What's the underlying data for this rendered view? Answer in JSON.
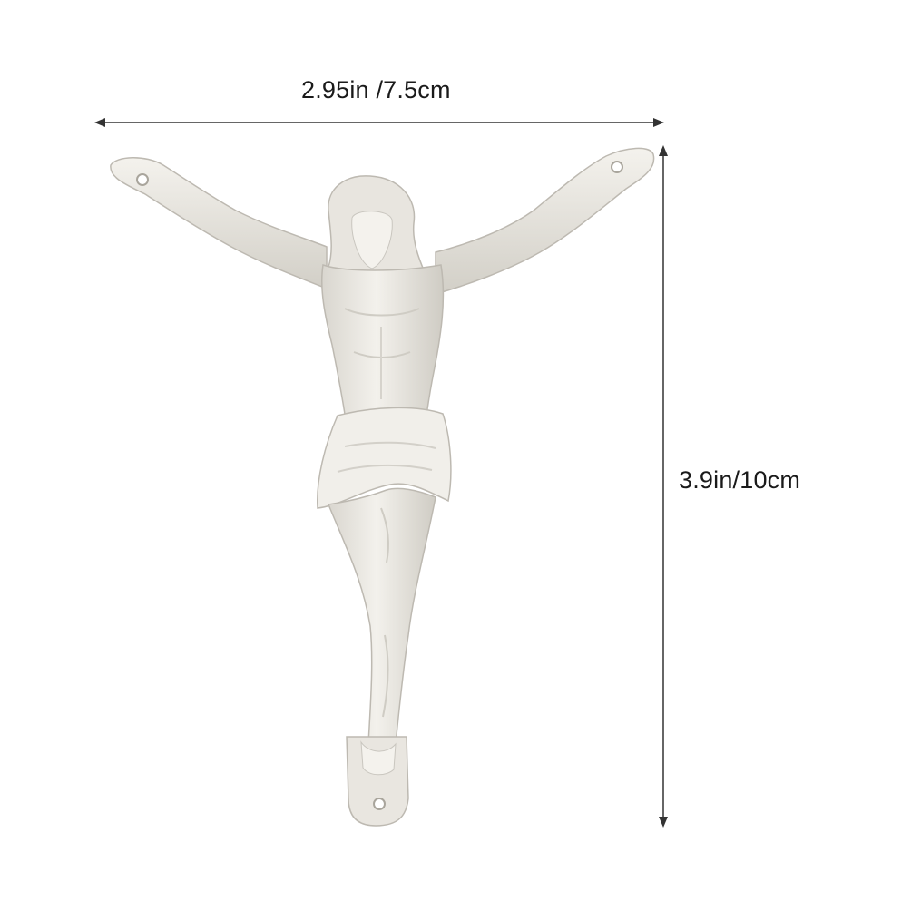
{
  "dimensions": {
    "width_label": "2.95in /7.5cm",
    "height_label": "3.9in/10cm"
  },
  "product": {
    "figure_color": "#efede8",
    "shadow_color": "#c9c6bf",
    "arrow_color": "#333333"
  }
}
